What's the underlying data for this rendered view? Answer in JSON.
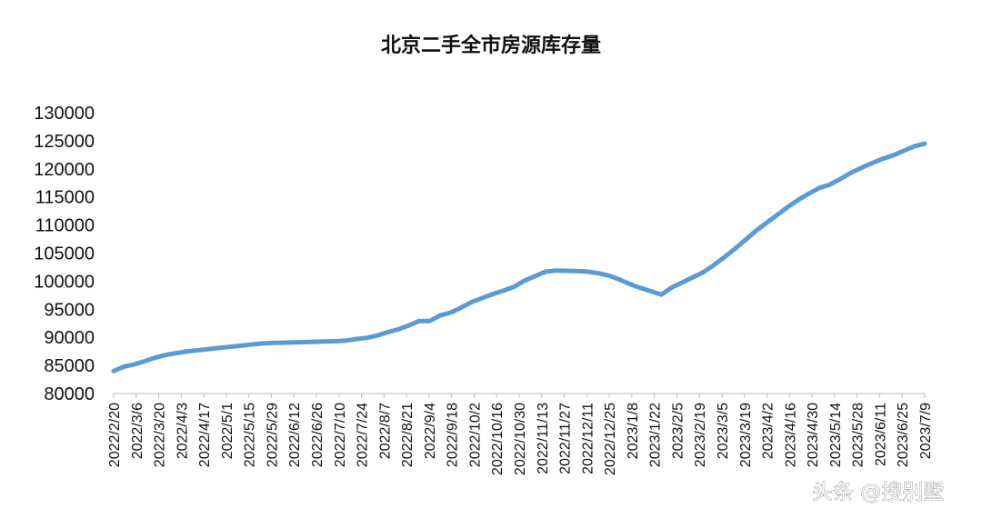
{
  "watermark": "头条 @搜别墅",
  "chart_data": {
    "type": "line",
    "title": "北京二手全市房源库存量",
    "xlabel": "",
    "ylabel": "",
    "ylim": [
      80000,
      130000
    ],
    "yticks": [
      "130000",
      "125000",
      "120000",
      "115000",
      "110000",
      "105000",
      "100000",
      "95000",
      "90000",
      "85000",
      "80000"
    ],
    "ytick_values": [
      130000,
      125000,
      120000,
      115000,
      110000,
      105000,
      100000,
      95000,
      90000,
      85000,
      80000
    ],
    "xtick_labels": [
      "2022/2/20",
      "2022/3/6",
      "2022/3/20",
      "2022/4/3",
      "2022/4/17",
      "2022/5/1",
      "2022/5/15",
      "2022/5/29",
      "2022/6/12",
      "2022/6/26",
      "2022/7/10",
      "2022/7/24",
      "2022/8/7",
      "2022/8/21",
      "2022/9/4",
      "2022/9/18",
      "2022/10/2",
      "2022/10/16",
      "2022/10/30",
      "2022/11/13",
      "2022/11/27",
      "2022/12/11",
      "2022/12/25",
      "2023/1/8",
      "2023/1/22",
      "2023/2/5",
      "2023/2/19",
      "2023/3/5",
      "2023/3/19",
      "2023/4/2",
      "2023/4/16",
      "2023/4/30",
      "2023/5/14",
      "2023/5/28",
      "2023/6/11",
      "2023/6/25",
      "2023/7/9"
    ],
    "grid": false,
    "legend": "none",
    "series_color": "#5b9bd5",
    "series": [
      {
        "name": "",
        "values": [
          84000,
          84800,
          85200,
          85800,
          86400,
          86900,
          87200,
          87500,
          87700,
          87900,
          88100,
          88300,
          88500,
          88700,
          88900,
          89000,
          89050,
          89100,
          89150,
          89200,
          89250,
          89300,
          89400,
          89700,
          89900,
          90300,
          90900,
          91400,
          92100,
          92900,
          92900,
          93900,
          94400,
          95300,
          96300,
          97000,
          97700,
          98300,
          99000,
          100100,
          100900,
          101700,
          101900,
          101850,
          101800,
          101700,
          101400,
          101000,
          100300,
          99500,
          98800,
          98200,
          97600,
          98900,
          99800,
          100700,
          101600,
          102900,
          104300,
          105800,
          107400,
          109000,
          110400,
          111800,
          113200,
          114500,
          115600,
          116600,
          117200,
          118200,
          119300,
          120200,
          121000,
          121800,
          122400,
          123200,
          124000,
          124500
        ]
      }
    ]
  }
}
